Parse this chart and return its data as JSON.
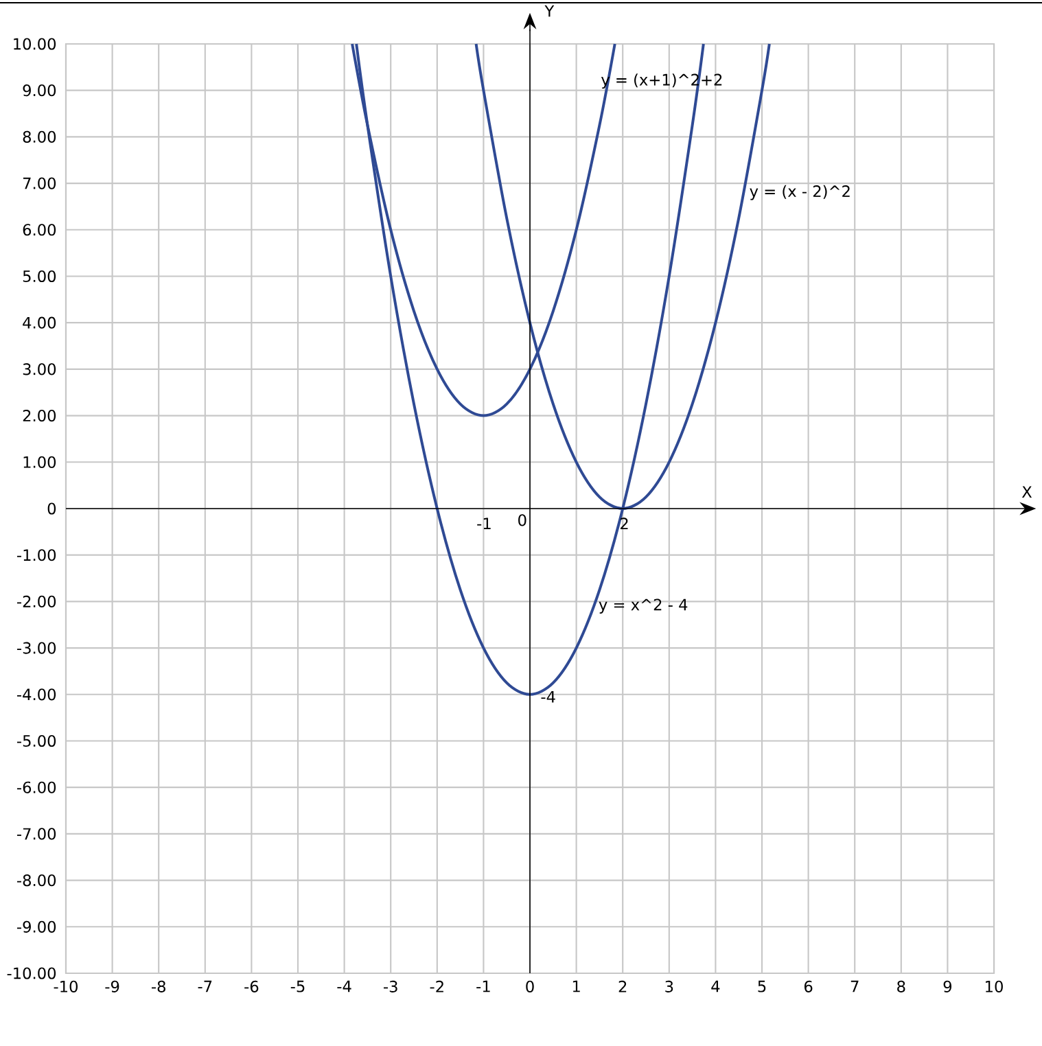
{
  "chart_data": {
    "type": "line",
    "xlabel": "X",
    "ylabel": "Y",
    "xlim": [
      -10,
      10
    ],
    "ylim": [
      -10,
      10
    ],
    "xticks": [
      -10,
      -9,
      -8,
      -7,
      -6,
      -5,
      -4,
      -3,
      -2,
      -1,
      0,
      1,
      2,
      3,
      4,
      5,
      6,
      7,
      8,
      9,
      10
    ],
    "yticks": [
      {
        "value": -10,
        "label": "-10.00"
      },
      {
        "value": -9,
        "label": "-9.00"
      },
      {
        "value": -8,
        "label": "-8.00"
      },
      {
        "value": -7,
        "label": "-7.00"
      },
      {
        "value": -6,
        "label": "-6.00"
      },
      {
        "value": -5,
        "label": "-5.00"
      },
      {
        "value": -4,
        "label": "-4.00"
      },
      {
        "value": -3,
        "label": "-3.00"
      },
      {
        "value": -2,
        "label": "-2.00"
      },
      {
        "value": -1,
        "label": "-1.00"
      },
      {
        "value": 0,
        "label": "0"
      },
      {
        "value": 1,
        "label": "1.00"
      },
      {
        "value": 2,
        "label": "2.00"
      },
      {
        "value": 3,
        "label": "3.00"
      },
      {
        "value": 4,
        "label": "4.00"
      },
      {
        "value": 5,
        "label": "5.00"
      },
      {
        "value": 6,
        "label": "6.00"
      },
      {
        "value": 7,
        "label": "7.00"
      },
      {
        "value": 8,
        "label": "8.00"
      },
      {
        "value": 9,
        "label": "9.00"
      },
      {
        "value": 10,
        "label": "10.00"
      }
    ],
    "grid": true,
    "series": [
      {
        "color": "#2f4a94",
        "x": [
          -3.74,
          -3.5,
          -3,
          -2.5,
          -2,
          -1.5,
          -1,
          -0.5,
          0,
          0.5,
          1,
          1.5,
          2,
          2.5,
          3,
          3.5,
          3.74
        ],
        "values": [
          10,
          8.25,
          5,
          2.25,
          0,
          -1.75,
          -3,
          -3.75,
          -4,
          -3.75,
          -3,
          -1.75,
          0,
          2.25,
          5,
          8.25,
          10
        ]
      },
      {
        "color": "#2f4a94",
        "x": [
          -3.83,
          -3.5,
          -3,
          -2.5,
          -2,
          -1.5,
          -1,
          -0.5,
          0,
          0.5,
          1,
          1.5,
          1.83
        ],
        "values": [
          10,
          8.25,
          6,
          4.25,
          3,
          2.25,
          2,
          2.25,
          3,
          4.25,
          6,
          8.25,
          10
        ]
      },
      {
        "color": "#2f4a94",
        "x": [
          -1.16,
          -1,
          -0.5,
          0,
          0.5,
          1,
          1.5,
          2,
          2.5,
          3,
          3.5,
          4,
          4.5,
          5,
          5.16
        ],
        "values": [
          10,
          9,
          6.25,
          4,
          2.25,
          1,
          0.25,
          0,
          0.25,
          1,
          2.25,
          4,
          6.25,
          9,
          10
        ]
      }
    ],
    "annotations": [
      "y = (x+1)^2+2",
      {
        "text": "y = (x - 2)^2",
        "x": 4.7,
        "y": 6.8
      },
      {
        "text": "y = x^2 - 4",
        "x": 1.45,
        "y": -2.1
      },
      "-1",
      "0",
      {
        "text": "2",
        "x": 1.9,
        "y": -0.32
      },
      {
        "text": "-4",
        "x": 0.2,
        "y": -4.05
      }
    ]
  }
}
